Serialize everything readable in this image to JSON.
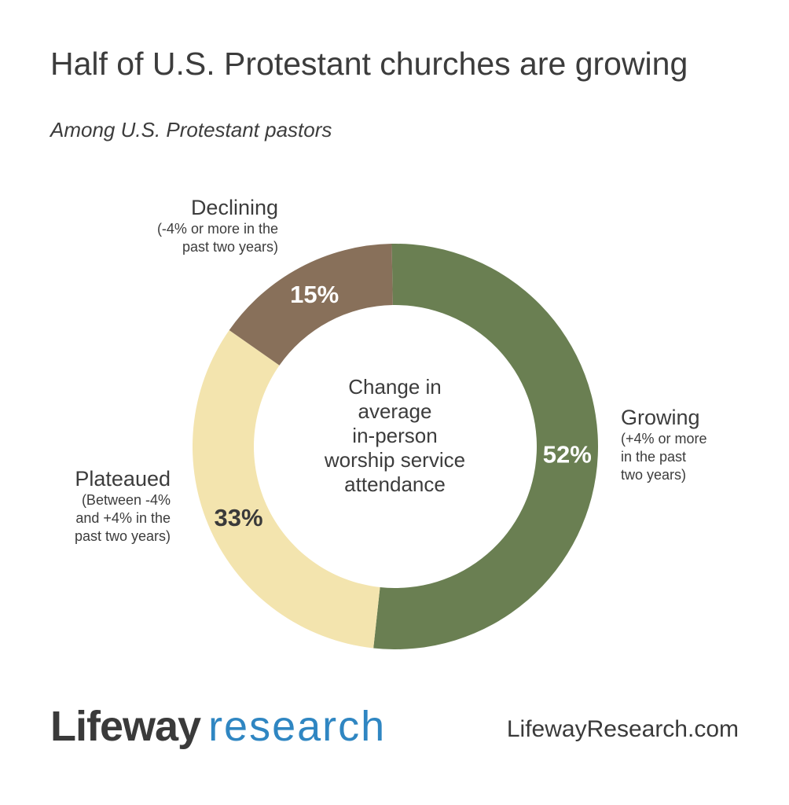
{
  "chart_data": {
    "type": "pie",
    "title": "Half of U.S. Protestant churches are growing",
    "subtitle": "Among U.S. Protestant pastors",
    "center_label_lines": [
      "Change in",
      "average",
      "in-person",
      "worship service",
      "attendance"
    ],
    "slices": [
      {
        "name": "Growing",
        "description_lines": [
          "(+4% or more",
          "in the past",
          "two years)"
        ],
        "value": 52,
        "display": "52%",
        "color": "#6a7f52",
        "value_text_color": "#ffffff"
      },
      {
        "name": "Plateaued",
        "label_text": "Plateaued",
        "description_lines": [
          "(Between -4%",
          "and +4% in the",
          "past two years)"
        ],
        "value": 33,
        "display": "33%",
        "color": "#f3e4ae",
        "value_text_color": "#3a3a3a"
      },
      {
        "name": "Declining",
        "description_lines": [
          "(-4% or more in the",
          "past two years)"
        ],
        "value": 15,
        "display": "15%",
        "color": "#88705a",
        "value_text_color": "#ffffff"
      }
    ]
  },
  "labels": {
    "growing_name": "Growing",
    "plateaued_name": "Plateaued",
    "declining_name": "Declining"
  },
  "footer": {
    "logo_brand": "Lifeway",
    "logo_sub": "research",
    "website": "LifewayResearch.com"
  }
}
